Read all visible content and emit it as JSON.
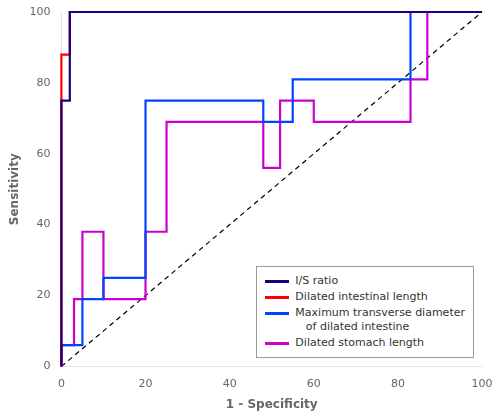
{
  "chart_data": {
    "type": "line",
    "xlabel": "1 - Specificity",
    "ylabel": "Sensitivity",
    "xlim": [
      0,
      100
    ],
    "ylim": [
      0,
      100
    ],
    "xticks": [
      0,
      20,
      40,
      60,
      80,
      100
    ],
    "yticks": [
      0,
      20,
      40,
      60,
      80,
      100
    ],
    "grid": false,
    "legend": "lower right",
    "series": [
      {
        "name": "I/S ratio",
        "color": "#1a0080",
        "x": [
          0,
          0,
          2,
          2,
          83,
          83,
          100
        ],
        "values": [
          0,
          75,
          75,
          100,
          100,
          100,
          100
        ]
      },
      {
        "name": "Dilated intestinal length",
        "color": "#FF0000",
        "x": [
          0,
          0,
          2,
          2,
          100
        ],
        "values": [
          0,
          88,
          88,
          100,
          100
        ]
      },
      {
        "name": "Maximum transverse diameter\n   of dilated intestine",
        "color": "#0044FF",
        "x": [
          0,
          0,
          5,
          5,
          10,
          10,
          20,
          20,
          48,
          48,
          55,
          55,
          83,
          83,
          100
        ],
        "values": [
          0,
          6,
          6,
          19,
          19,
          25,
          25,
          75,
          75,
          69,
          69,
          81,
          81,
          100,
          100
        ]
      },
      {
        "name": "Dilated stomach length",
        "color": "#CC00CC",
        "x": [
          0,
          0,
          3,
          3,
          5,
          5,
          10,
          10,
          20,
          20,
          25,
          25,
          48,
          48,
          52,
          52,
          60,
          60,
          83,
          83,
          87,
          87,
          100
        ],
        "values": [
          0,
          6,
          6,
          19,
          19,
          38,
          38,
          19,
          19,
          38,
          38,
          69,
          69,
          56,
          56,
          75,
          75,
          69,
          69,
          81,
          81,
          100,
          100
        ]
      }
    ],
    "diagonal": {
      "x": [
        0,
        100
      ],
      "values": [
        0,
        100
      ],
      "color": "#000000",
      "line_style": "dashed"
    }
  }
}
